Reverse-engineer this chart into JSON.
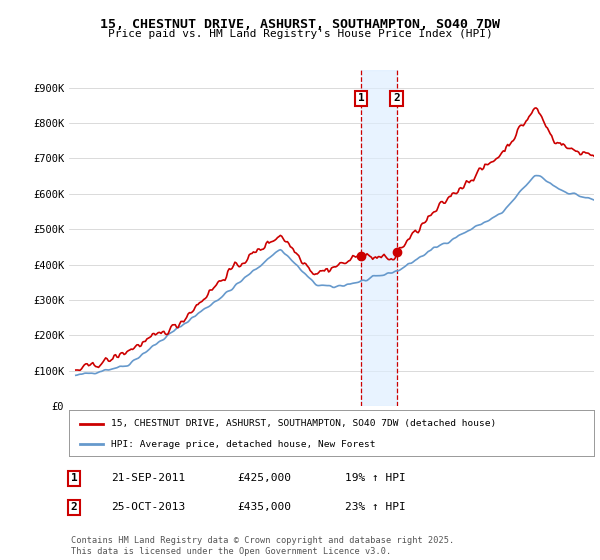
{
  "title": "15, CHESTNUT DRIVE, ASHURST, SOUTHAMPTON, SO40 7DW",
  "subtitle": "Price paid vs. HM Land Registry's House Price Index (HPI)",
  "ylim": [
    0,
    950000
  ],
  "yticks": [
    0,
    100000,
    200000,
    300000,
    400000,
    500000,
    600000,
    700000,
    800000,
    900000
  ],
  "ytick_labels": [
    "£0",
    "£100K",
    "£200K",
    "£300K",
    "£400K",
    "£500K",
    "£600K",
    "£700K",
    "£800K",
    "£900K"
  ],
  "hpi_color": "#6699cc",
  "price_color": "#cc0000",
  "transaction1_date": 2011.73,
  "transaction2_date": 2013.82,
  "transaction1_price": 425000,
  "transaction2_price": 435000,
  "legend_label_price": "15, CHESTNUT DRIVE, ASHURST, SOUTHAMPTON, SO40 7DW (detached house)",
  "legend_label_hpi": "HPI: Average price, detached house, New Forest",
  "annotation1_text": "21-SEP-2011",
  "annotation2_text": "25-OCT-2013",
  "annotation1_price": "£425,000",
  "annotation2_price": "£435,000",
  "annotation1_hpi": "19% ↑ HPI",
  "annotation2_hpi": "23% ↑ HPI",
  "footnote": "Contains HM Land Registry data © Crown copyright and database right 2025.\nThis data is licensed under the Open Government Licence v3.0.",
  "bg_color": "#ffffff",
  "grid_color": "#cccccc",
  "shade_color": "#ddeeff"
}
